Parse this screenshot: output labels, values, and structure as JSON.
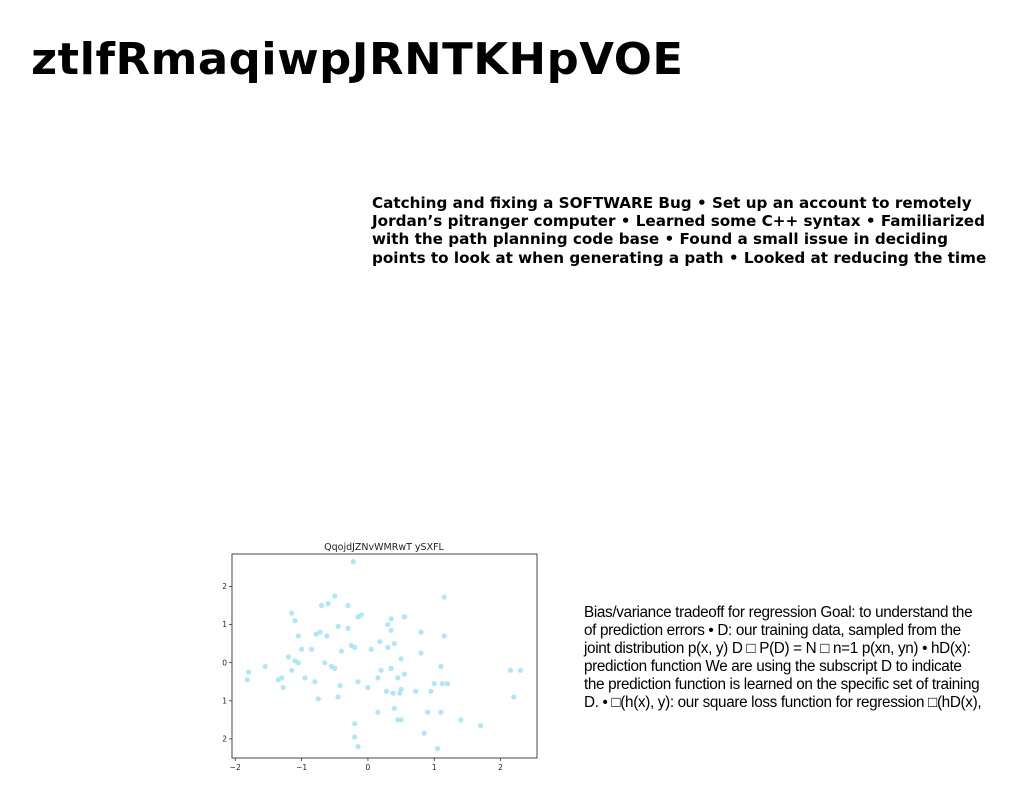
{
  "title": "ztlfRmaqiwpJRNTKHpVOE",
  "bold_paragraph": {
    "lines": [
      "Catching and fixing a SOFTWARE Bug • Set up an account to remotely",
      "Jordan’s pitranger computer • Learned some C++ syntax • Familiarized",
      "with the path planning code base • Found a small issue in deciding",
      "points to look at when generating a path • Looked at reducing the time"
    ]
  },
  "plain_paragraph": {
    "lines": [
      "Bias/variance tradeoff for regression Goal: to understand the",
      "of prediction errors • D: our training data, sampled from the",
      "joint distribution p(x, y) D □ P(D) = N □ n=1 p(xn, yn) • hD(x):",
      "prediction function We are using the subscript D to indicate",
      "the prediction function is learned on the specific set of training",
      "D. • □(h(x), y): our square loss function for regression □(hD(x),"
    ]
  },
  "chart_data": {
    "type": "scatter",
    "title": "QqojdJZNvWMRwT ySXFL",
    "xlabel": "",
    "ylabel": "",
    "xlim": [
      -2.05,
      2.55
    ],
    "ylim": [
      -2.5,
      2.85
    ],
    "xticks": [
      -2,
      -1,
      0,
      1,
      2
    ],
    "yticks": [
      -2,
      -1,
      0,
      1,
      2
    ],
    "grid": false,
    "point_color": "#a7e4f7",
    "series": [
      {
        "x": [
          -0.22,
          -0.5,
          -0.3,
          1.15,
          -0.6,
          -0.7,
          -1.15,
          -0.15,
          -0.1,
          0.35,
          0.55,
          -1.1,
          -0.45,
          0.3,
          -0.3,
          0.8,
          0.35,
          -1.05,
          -0.78,
          -0.72,
          -0.62,
          1.15,
          -0.2,
          0.18,
          0.4,
          -0.25,
          0.3,
          -1.0,
          -0.85,
          0.05,
          -0.4,
          0.5,
          0.8,
          -1.2,
          -1.1,
          -1.05,
          -0.65,
          1.1,
          0.35,
          -0.55,
          -1.55,
          -1.8,
          -1.15,
          0.2,
          -0.5,
          0.15,
          0.55,
          -0.95,
          0.45,
          1.12,
          2.3,
          2.15,
          -1.3,
          -1.35,
          0.5,
          -0.8,
          -0.42,
          -0.15,
          0.28,
          0.0,
          0.95,
          0.38,
          0.48,
          0.72,
          1.0,
          1.2,
          -1.82,
          -0.45,
          0.5,
          -0.75,
          0.15,
          0.4,
          1.1,
          0.9,
          1.4,
          -0.2,
          0.45,
          1.7,
          -0.2,
          0.85,
          -0.15,
          1.05,
          -1.28,
          2.2
        ],
        "y": [
          2.65,
          1.75,
          1.5,
          1.72,
          1.55,
          1.5,
          1.3,
          1.2,
          1.25,
          1.15,
          1.2,
          1.1,
          0.95,
          1.0,
          0.9,
          0.8,
          0.85,
          0.7,
          0.75,
          0.8,
          0.7,
          0.7,
          0.4,
          0.55,
          0.5,
          0.45,
          0.4,
          0.35,
          0.35,
          0.35,
          0.3,
          0.1,
          0.25,
          0.15,
          0.05,
          0.0,
          0.0,
          -0.1,
          -0.15,
          -0.1,
          -0.1,
          -0.25,
          -0.2,
          -0.2,
          -0.15,
          -0.4,
          -0.3,
          -0.4,
          -0.4,
          -0.55,
          -0.2,
          -0.2,
          -0.4,
          -0.45,
          -0.7,
          -0.5,
          -0.6,
          -0.5,
          -0.75,
          -0.65,
          -0.75,
          -0.8,
          -0.8,
          -0.75,
          -0.55,
          -0.55,
          -0.45,
          -0.9,
          -1.5,
          -0.95,
          -1.3,
          -1.2,
          -1.3,
          -1.3,
          -1.5,
          -1.6,
          -1.5,
          -1.65,
          -1.95,
          -1.85,
          -2.2,
          -2.25,
          -0.65,
          -0.9
        ]
      }
    ]
  }
}
